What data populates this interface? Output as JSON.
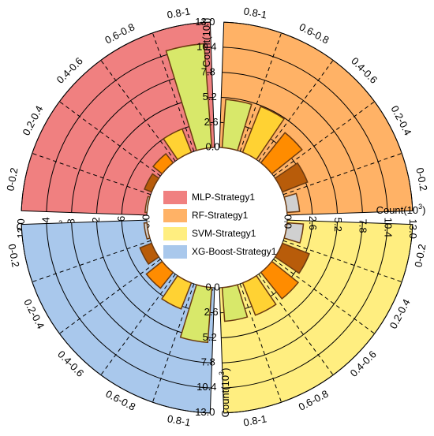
{
  "chart_data": {
    "type": "polar-bar",
    "axis": {
      "title_prefix": "Count(10",
      "title_exp": "3",
      "title_suffix": ")",
      "ticks": [
        "0.0",
        "2.6",
        "5.2",
        "7.8",
        "10.4",
        "13.0"
      ],
      "tick_values": [
        0,
        2.6,
        5.2,
        7.8,
        10.4,
        13.0
      ],
      "max": 13.0,
      "grid": true
    },
    "categories": [
      "0-0.2",
      "0.2-0.4",
      "0.4-0.6",
      "0.6-0.8",
      "0.8-1"
    ],
    "bar_colors": [
      "#D0D0D0",
      "#B85C0A",
      "#FF8C00",
      "#FFD233",
      "#D8E86A"
    ],
    "legend": [
      {
        "label": "MLP-Strategy1",
        "color": "#F08080"
      },
      {
        "label": "RF-Strategy1",
        "color": "#FFB266"
      },
      {
        "label": "SVM-Strategy1",
        "color": "#FFEE80"
      },
      {
        "label": "XG-Boost-Strategy1",
        "color": "#A9C8EC"
      }
    ],
    "series": [
      {
        "name": "MLP-Strategy1",
        "bg": "#F08080",
        "values": [
          0.2,
          0.8,
          1.2,
          2.6,
          10.8
        ]
      },
      {
        "name": "RF-Strategy1",
        "bg": "#FFB266",
        "values": [
          1.3,
          2.8,
          4.0,
          5.1,
          5.0
        ]
      },
      {
        "name": "SVM-Strategy1",
        "bg": "#FFEE80",
        "values": [
          1.7,
          3.0,
          3.5,
          3.6,
          3.5
        ]
      },
      {
        "name": "XG-Boost-Strategy1",
        "bg": "#A9C8EC",
        "values": [
          0.3,
          1.3,
          2.1,
          2.9,
          5.7
        ]
      }
    ]
  }
}
